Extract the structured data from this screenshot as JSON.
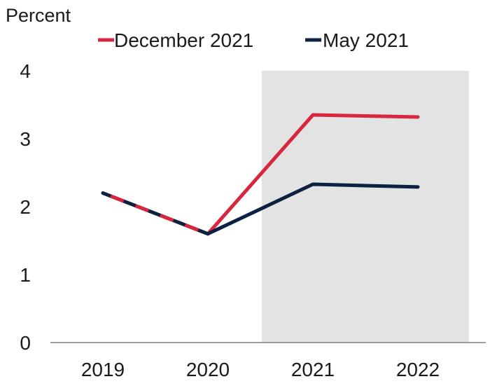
{
  "chart_data": {
    "type": "line",
    "ylabel": "Percent",
    "categories": [
      "2019",
      "2020",
      "2021",
      "2022"
    ],
    "ylim": [
      0,
      4
    ],
    "yticks": [
      "0",
      "1",
      "2",
      "3",
      "4"
    ],
    "shaded_categories": [
      "2021",
      "2022"
    ],
    "grid": false,
    "legend_position": "top",
    "series": [
      {
        "name": "December 2021",
        "color": "#d7263d",
        "values": [
          2.2,
          1.6,
          3.35,
          3.32
        ]
      },
      {
        "name": "May 2021",
        "color": "#0d2240",
        "values": [
          2.2,
          1.6,
          2.33,
          2.29
        ]
      }
    ],
    "shade_color": "#e3e3e3",
    "axis_color": "#7f7f7f"
  }
}
